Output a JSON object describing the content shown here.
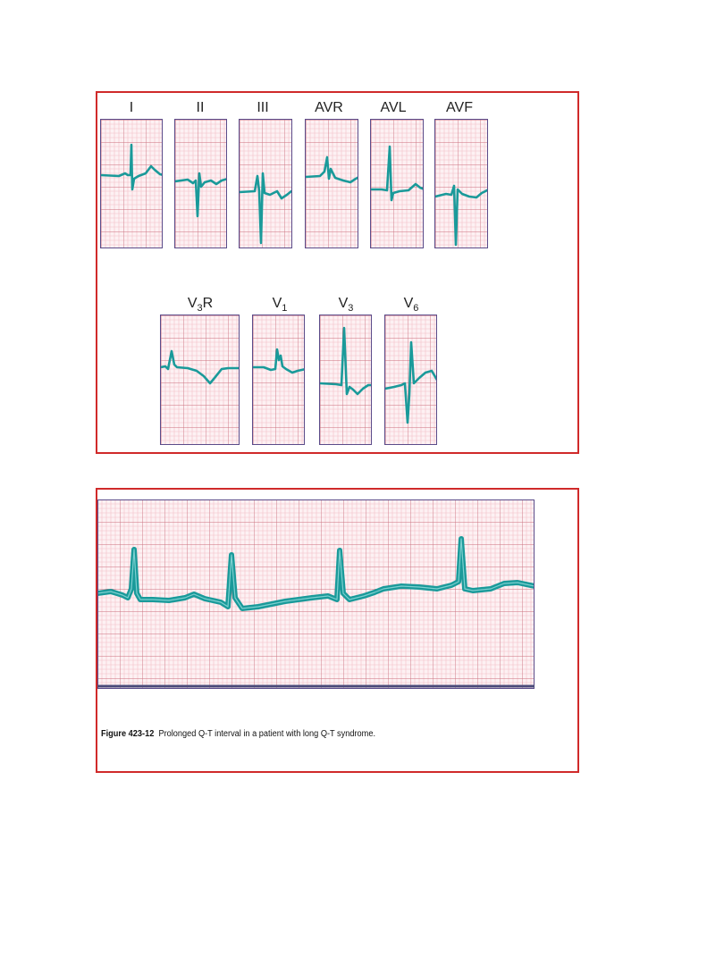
{
  "colors": {
    "frame_border": "#d02a2a",
    "grid_minor": "#f2c0c8",
    "grid_major": "#cc6f7d",
    "panel_border": "#5b4c8a",
    "trace": "#1a9a9a"
  },
  "leads_row1": [
    {
      "id": "I",
      "label": "I"
    },
    {
      "id": "II",
      "label": "II"
    },
    {
      "id": "III",
      "label": "III"
    },
    {
      "id": "AVR",
      "label": "AVR"
    },
    {
      "id": "AVL",
      "label": "AVL"
    },
    {
      "id": "AVF",
      "label": "AVF"
    }
  ],
  "leads_row2": [
    {
      "id": "V3R",
      "main": "V",
      "sub": "3",
      "suffix": "R"
    },
    {
      "id": "V1",
      "main": "V",
      "sub": "1",
      "suffix": ""
    },
    {
      "id": "V3",
      "main": "V",
      "sub": "3",
      "suffix": ""
    },
    {
      "id": "V6",
      "main": "V",
      "sub": "6",
      "suffix": ""
    }
  ],
  "caption": {
    "figure_number": "Figure 423-12",
    "text": "Prolonged Q-T interval in a patient with long Q-T syndrome."
  }
}
